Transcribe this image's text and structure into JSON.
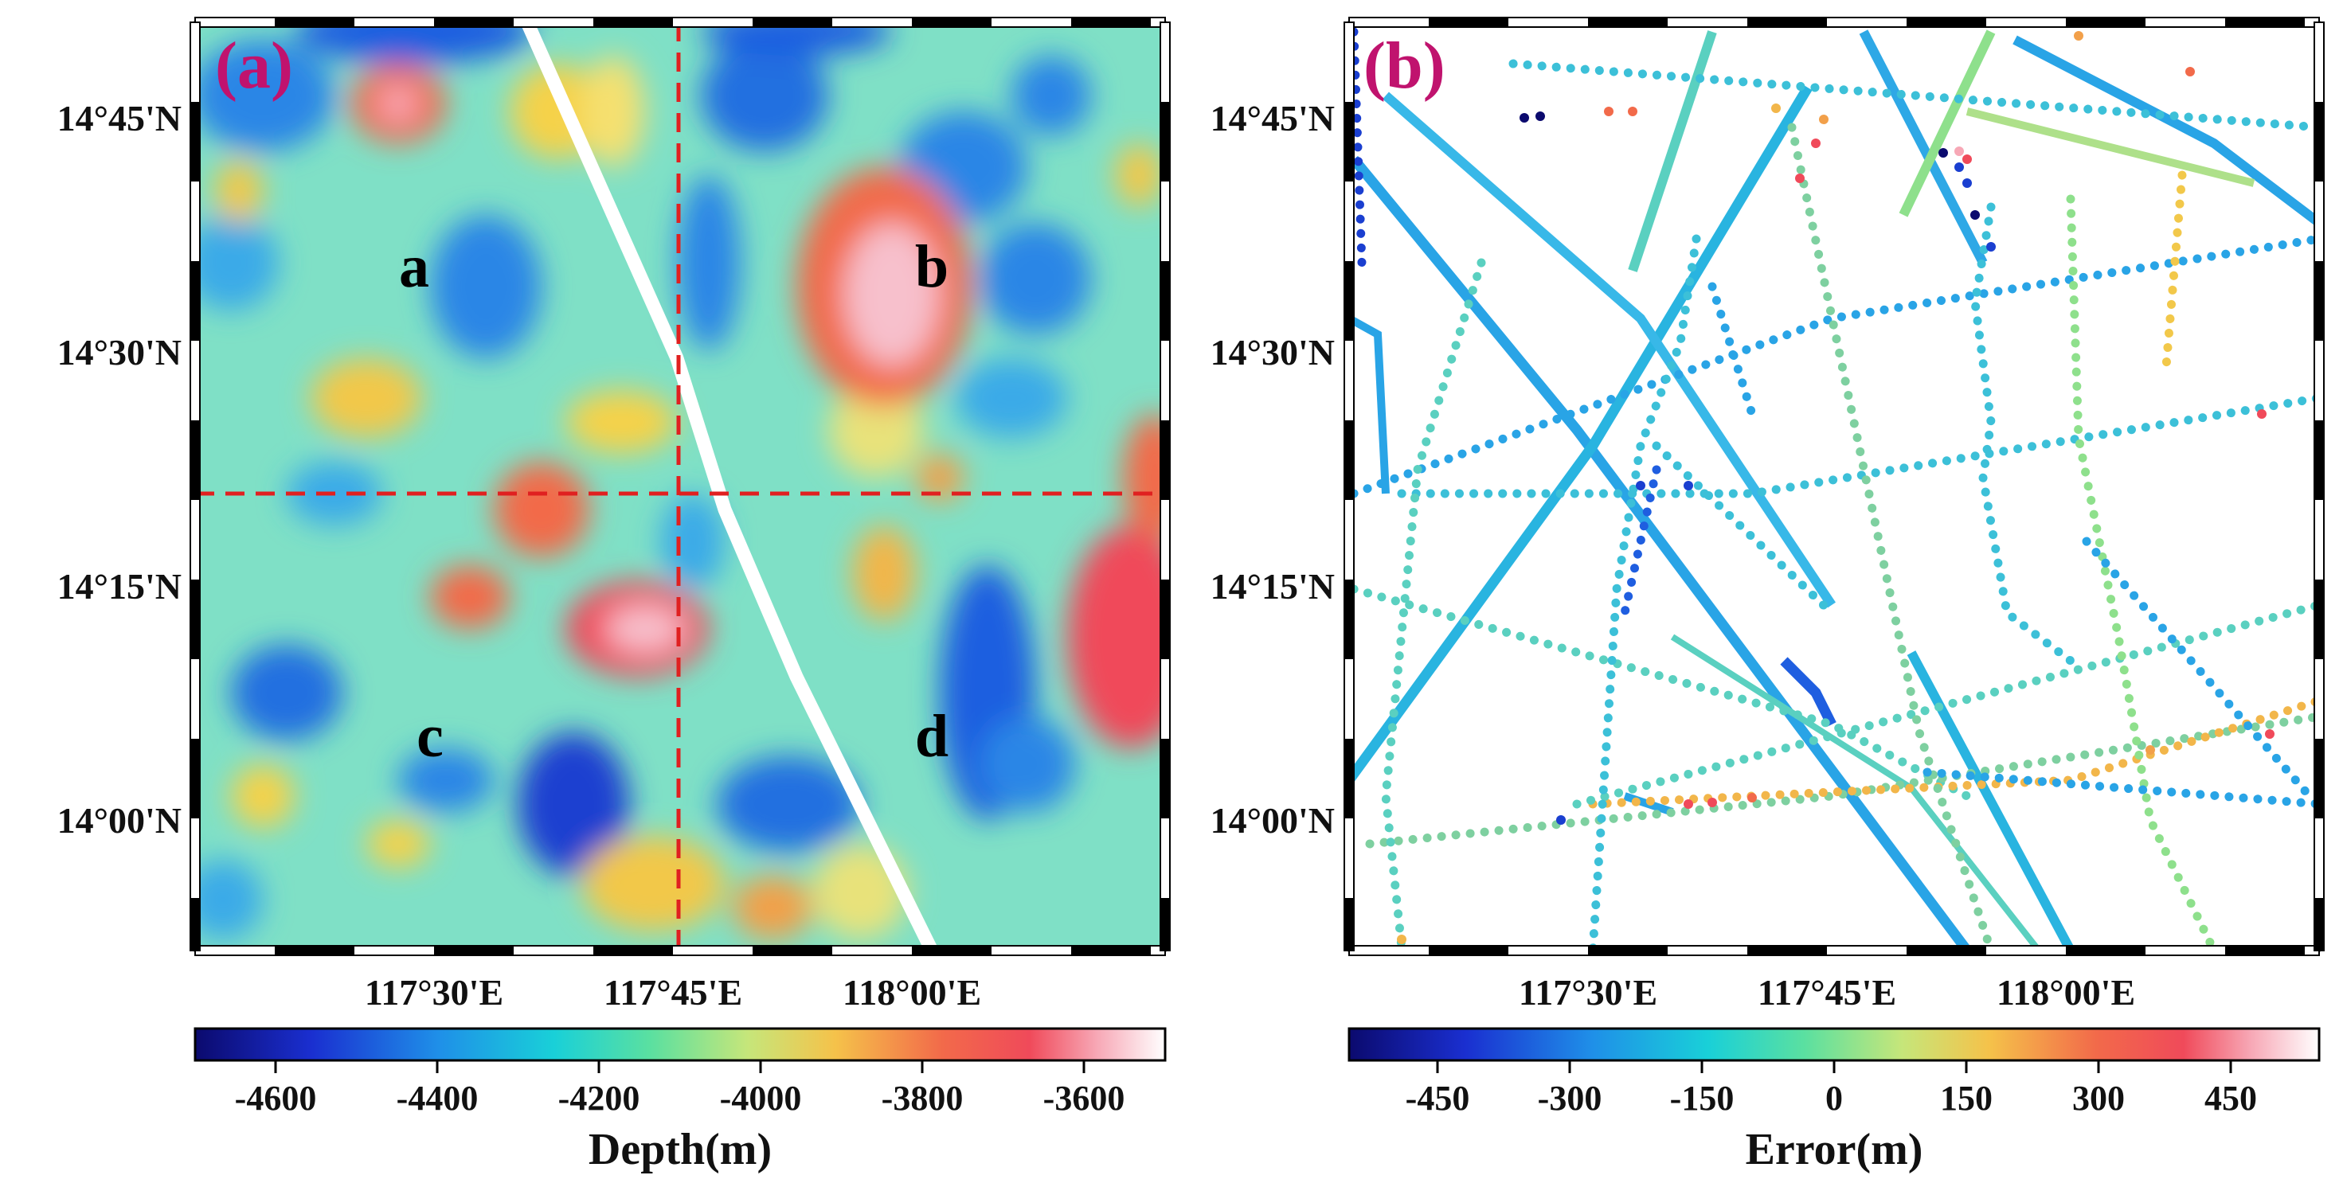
{
  "colors": {
    "panel_label": "#c0136e",
    "crosshair": "#e02020",
    "ship_track": "#ffffff"
  },
  "panels": [
    {
      "label": "(a)",
      "lat_ticks": [
        "14°45'N",
        "14°30'N",
        "14°15'N",
        "14°00'N"
      ],
      "lon_ticks": [
        "117°30'E",
        "117°45'E",
        "118°00'E"
      ],
      "regions": [
        "a",
        "b",
        "c",
        "d"
      ],
      "colorbar": {
        "ticks": [
          "-4600",
          "-4400",
          "-4200",
          "-4000",
          "-3800",
          "-3600"
        ],
        "title": "Depth(m)",
        "range": [
          -4700,
          -3500
        ]
      }
    },
    {
      "label": "(b)",
      "lat_ticks": [
        "14°45'N",
        "14°30'N",
        "14°15'N",
        "14°00'N"
      ],
      "lon_ticks": [
        "117°30'E",
        "117°45'E",
        "118°00'E"
      ],
      "colorbar": {
        "ticks": [
          "-450",
          "-300",
          "-150",
          "0",
          "150",
          "300",
          "450"
        ],
        "title": "Error(m)",
        "range": [
          -550,
          550
        ]
      }
    }
  ]
}
